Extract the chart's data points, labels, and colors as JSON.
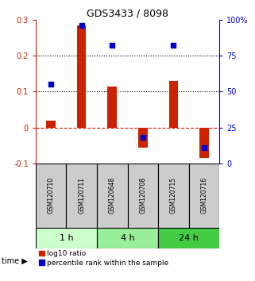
{
  "title": "GDS3433 / 8098",
  "samples": [
    "GSM120710",
    "GSM120711",
    "GSM120648",
    "GSM120708",
    "GSM120715",
    "GSM120716"
  ],
  "log10_ratio": [
    0.02,
    0.285,
    0.115,
    -0.055,
    0.13,
    -0.085
  ],
  "percentile_rank": [
    55,
    96,
    82,
    18,
    82,
    11
  ],
  "time_groups": [
    {
      "label": "1 h",
      "start": 0,
      "end": 2,
      "color": "#ccffcc"
    },
    {
      "label": "4 h",
      "start": 2,
      "end": 4,
      "color": "#99ee99"
    },
    {
      "label": "24 h",
      "start": 4,
      "end": 6,
      "color": "#44cc44"
    }
  ],
  "bar_color": "#cc2200",
  "dot_color": "#0000cc",
  "ylim_left": [
    -0.1,
    0.3
  ],
  "ylim_right": [
    0,
    100
  ],
  "yticks_left": [
    -0.1,
    0.0,
    0.1,
    0.2,
    0.3
  ],
  "yticks_right": [
    0,
    25,
    50,
    75,
    100
  ],
  "ytick_labels_left": [
    "-0.1",
    "0",
    "0.1",
    "0.2",
    "0.3"
  ],
  "ytick_labels_right": [
    "0",
    "25",
    "50",
    "75",
    "100%"
  ],
  "hlines": [
    0.1,
    0.2
  ],
  "bar_width": 0.3,
  "dot_size": 25,
  "background_color": "#ffffff",
  "sample_box_color": "#cccccc",
  "legend_red_label": "log10 ratio",
  "legend_blue_label": "percentile rank within the sample",
  "time_label": "time ▶"
}
